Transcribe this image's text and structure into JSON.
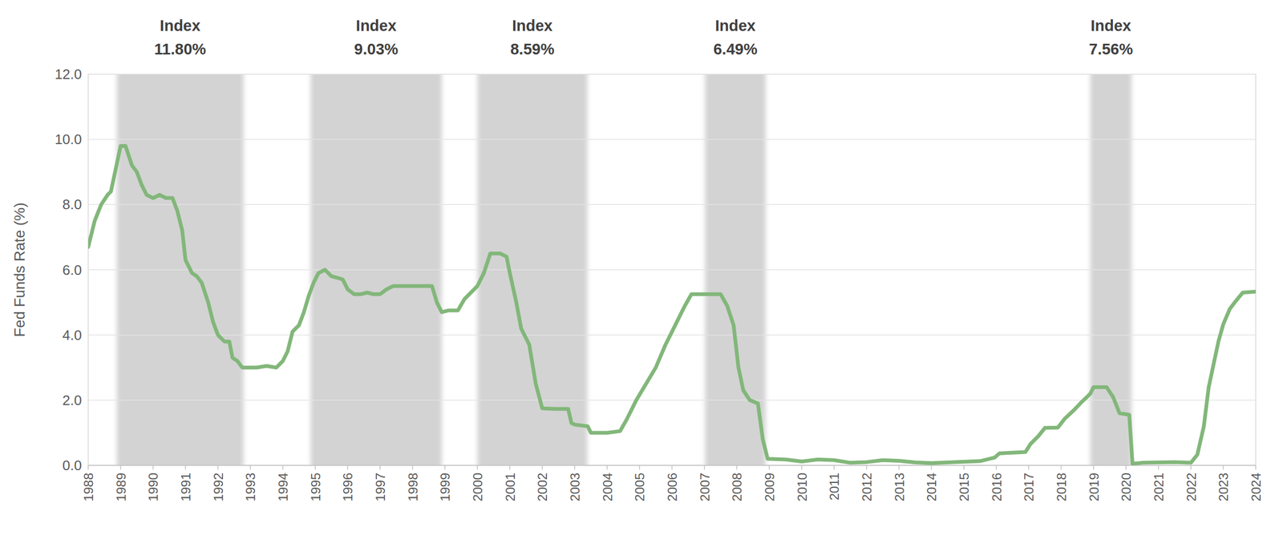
{
  "chart_data": {
    "type": "line",
    "y_label": "Fed Funds Rate (%)",
    "color": "#82b77a",
    "grid": true,
    "xlim": [
      1988,
      2024
    ],
    "xticks": [
      1988,
      1989,
      1990,
      1991,
      1992,
      1993,
      1994,
      1995,
      1996,
      1997,
      1998,
      1999,
      2000,
      2001,
      2002,
      2003,
      2004,
      2005,
      2006,
      2007,
      2008,
      2009,
      2010,
      2011,
      2012,
      2013,
      2014,
      2015,
      2016,
      2017,
      2018,
      2019,
      2020,
      2021,
      2022,
      2023,
      2024
    ],
    "ylim": [
      0,
      12
    ],
    "yticks": [
      {
        "value": 0,
        "label": "0.0"
      },
      {
        "value": 2,
        "label": "2.0"
      },
      {
        "value": 4,
        "label": "4.0"
      },
      {
        "value": 6,
        "label": "6.0"
      },
      {
        "value": 8,
        "label": "8.0"
      },
      {
        "value": 10,
        "label": "10.0"
      },
      {
        "value": 12,
        "label": "12.0"
      }
    ],
    "bands": [
      {
        "start": 1988.88,
        "end": 1992.79,
        "title": "Index",
        "text": "11.80%"
      },
      {
        "start": 1994.86,
        "end": 1998.9,
        "title": "Index",
        "text": "9.03%"
      },
      {
        "start": 2000.0,
        "end": 2003.39,
        "title": "Index",
        "text": "8.59%"
      },
      {
        "start": 2007.02,
        "end": 2008.89,
        "title": "Index",
        "text": "6.49%"
      },
      {
        "start": 2018.9,
        "end": 2020.17,
        "title": "Index",
        "text": "7.56%"
      }
    ],
    "x": [
      1988.0,
      1988.2,
      1988.4,
      1988.6,
      1988.7,
      1988.85,
      1989.0,
      1989.15,
      1989.35,
      1989.5,
      1989.65,
      1989.8,
      1990.0,
      1990.2,
      1990.4,
      1990.6,
      1990.75,
      1990.9,
      1991.0,
      1991.2,
      1991.35,
      1991.5,
      1991.7,
      1991.85,
      1992.0,
      1992.2,
      1992.35,
      1992.45,
      1992.6,
      1992.75,
      1992.9,
      1993.2,
      1993.5,
      1993.8,
      1994.0,
      1994.15,
      1994.3,
      1994.5,
      1994.65,
      1994.8,
      1994.95,
      1995.1,
      1995.3,
      1995.5,
      1995.7,
      1995.85,
      1996.0,
      1996.2,
      1996.4,
      1996.6,
      1996.8,
      1997.0,
      1997.2,
      1997.4,
      1997.7,
      1998.0,
      1998.3,
      1998.6,
      1998.75,
      1998.9,
      1999.1,
      1999.4,
      1999.6,
      1999.8,
      2000.0,
      2000.2,
      2000.4,
      2000.7,
      2000.9,
      2001.0,
      2001.2,
      2001.35,
      2001.6,
      2001.8,
      2002.0,
      2002.4,
      2002.8,
      2002.9,
      2003.0,
      2003.4,
      2003.5,
      2004.0,
      2004.4,
      2004.6,
      2004.9,
      2005.2,
      2005.5,
      2005.8,
      2006.1,
      2006.4,
      2006.6,
      2007.0,
      2007.5,
      2007.7,
      2007.9,
      2008.05,
      2008.2,
      2008.4,
      2008.65,
      2008.8,
      2008.95,
      2009.5,
      2010.0,
      2010.5,
      2011.0,
      2011.5,
      2012.0,
      2012.5,
      2013.0,
      2013.5,
      2014.0,
      2014.5,
      2015.0,
      2015.5,
      2015.95,
      2016.1,
      2016.9,
      2017.05,
      2017.3,
      2017.5,
      2017.9,
      2018.1,
      2018.4,
      2018.6,
      2018.9,
      2019.0,
      2019.4,
      2019.6,
      2019.8,
      2020.1,
      2020.2,
      2020.5,
      2021.0,
      2021.5,
      2022.0,
      2022.2,
      2022.4,
      2022.55,
      2022.7,
      2022.85,
      2023.0,
      2023.2,
      2023.4,
      2023.6,
      2024.0
    ],
    "values": [
      6.7,
      7.5,
      8.0,
      8.3,
      8.4,
      9.1,
      9.8,
      9.8,
      9.2,
      9.0,
      8.6,
      8.3,
      8.2,
      8.3,
      8.2,
      8.2,
      7.8,
      7.2,
      6.3,
      5.9,
      5.8,
      5.6,
      5.0,
      4.4,
      4.0,
      3.8,
      3.8,
      3.3,
      3.2,
      3.0,
      3.0,
      3.0,
      3.05,
      3.0,
      3.2,
      3.5,
      4.1,
      4.3,
      4.7,
      5.2,
      5.6,
      5.9,
      6.0,
      5.8,
      5.75,
      5.7,
      5.4,
      5.25,
      5.25,
      5.3,
      5.25,
      5.25,
      5.4,
      5.5,
      5.5,
      5.5,
      5.5,
      5.5,
      5.0,
      4.7,
      4.75,
      4.75,
      5.1,
      5.3,
      5.5,
      5.9,
      6.5,
      6.5,
      6.4,
      5.9,
      5.0,
      4.2,
      3.7,
      2.5,
      1.75,
      1.73,
      1.73,
      1.3,
      1.25,
      1.2,
      1.0,
      1.0,
      1.05,
      1.4,
      2.0,
      2.5,
      3.0,
      3.7,
      4.3,
      4.9,
      5.25,
      5.25,
      5.25,
      4.9,
      4.3,
      3.0,
      2.3,
      2.0,
      1.9,
      0.8,
      0.2,
      0.18,
      0.12,
      0.18,
      0.16,
      0.08,
      0.1,
      0.16,
      0.14,
      0.09,
      0.07,
      0.09,
      0.11,
      0.13,
      0.24,
      0.37,
      0.41,
      0.65,
      0.9,
      1.15,
      1.16,
      1.42,
      1.7,
      1.91,
      2.2,
      2.4,
      2.4,
      2.1,
      1.6,
      1.55,
      0.05,
      0.08,
      0.09,
      0.1,
      0.08,
      0.33,
      1.2,
      2.4,
      3.1,
      3.8,
      4.33,
      4.8,
      5.06,
      5.3,
      5.33
    ]
  }
}
